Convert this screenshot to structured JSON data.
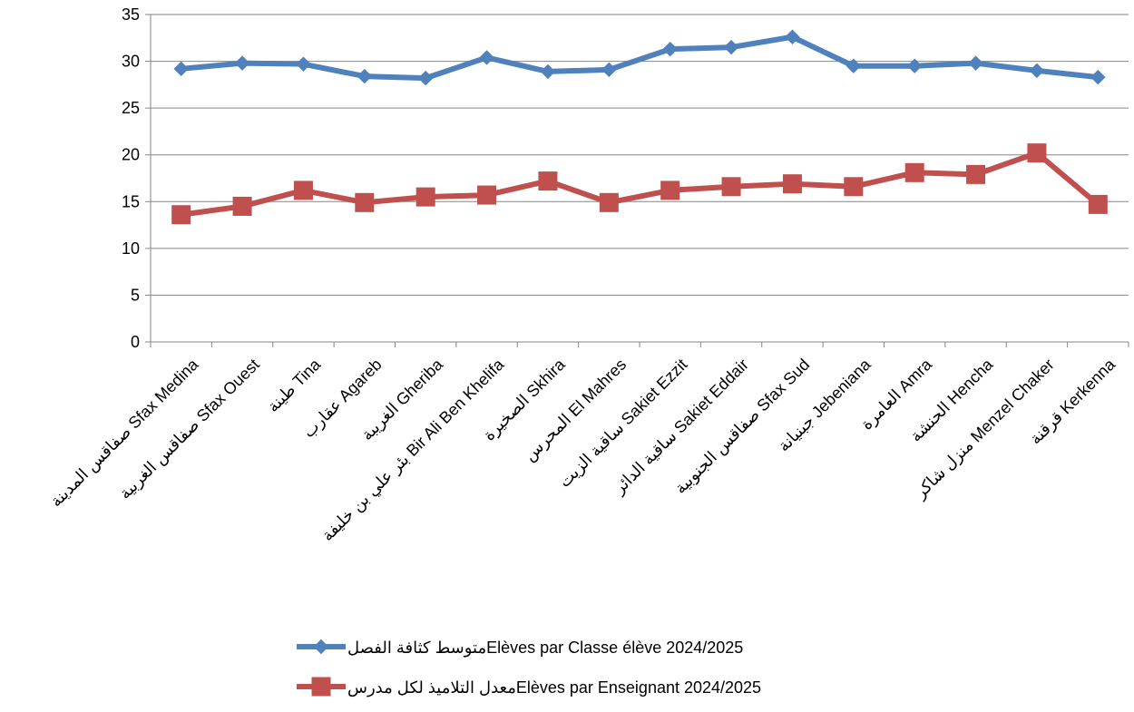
{
  "chart_data": {
    "type": "line",
    "title": "",
    "xlabel": "",
    "ylabel": "",
    "ylim": [
      0,
      35
    ],
    "yticks": [
      0,
      5,
      10,
      15,
      20,
      25,
      30,
      35
    ],
    "grid": true,
    "legend_position": "bottom",
    "categories": [
      "صفاقس المدينة  Sfax Medina",
      "صفاقس الغربية  Sfax Ouest",
      "طينة  Tina",
      "عقارب  Agareb",
      "الغريبة  Gheriba",
      "بئر علي بن خليفة  Bir Ali Ben Khelifa",
      "الصخيرة  Skhira",
      "المحرس  El Mahres",
      "ساقية الزيت  Sakiet Ezzit",
      "ساقية الدائر  Sakiet Eddair",
      "صفاقس الجنوبية  Sfax Sud",
      "جبنيانة  Jebeniana",
      "العامرة  Amra",
      "الحنشة  Hencha",
      "منزل شاكر  Menzel Chaker",
      "قرقنة  Kerkenna"
    ],
    "series": [
      {
        "name": "متوسط كثافة الفصلElèves par Classe élève  2024/2025",
        "color": "#4F81BD",
        "marker": "diamond",
        "values": [
          29.2,
          29.8,
          29.7,
          28.4,
          28.2,
          30.4,
          28.9,
          29.1,
          31.3,
          31.5,
          32.6,
          29.5,
          29.5,
          29.8,
          29.0,
          28.3
        ]
      },
      {
        "name": "معدل التلاميذ لكل مدرسElèves par Enseignant  2024/2025",
        "color": "#C0504D",
        "marker": "square",
        "values": [
          13.6,
          14.5,
          16.2,
          14.9,
          15.5,
          15.7,
          17.2,
          14.9,
          16.2,
          16.6,
          16.9,
          16.6,
          18.1,
          17.9,
          20.2,
          14.7
        ]
      }
    ]
  }
}
